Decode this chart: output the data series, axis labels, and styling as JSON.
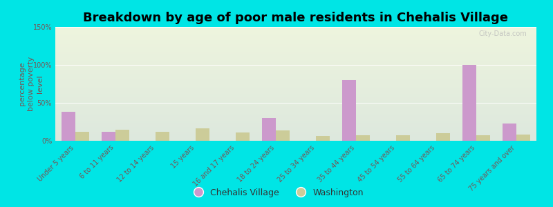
{
  "title": "Breakdown by age of poor male residents in Chehalis Village",
  "ylabel": "percentage\nbelow poverty\nlevel",
  "categories": [
    "Under 5 years",
    "6 to 11 years",
    "12 to 14 years",
    "15 years",
    "16 and 17 years",
    "18 to 24 years",
    "25 to 34 years",
    "35 to 44 years",
    "45 to 54 years",
    "55 to 64 years",
    "65 to 74 years",
    "75 years and over"
  ],
  "chehalis_values": [
    38,
    12,
    0,
    0,
    0,
    30,
    0,
    80,
    0,
    0,
    100,
    23
  ],
  "washington_values": [
    12,
    15,
    12,
    16,
    11,
    14,
    6,
    7,
    7,
    10,
    7,
    8
  ],
  "chehalis_color": "#cc99cc",
  "washington_color": "#cccc99",
  "ylim": [
    0,
    150
  ],
  "yticks": [
    0,
    50,
    100,
    150
  ],
  "ytick_labels": [
    "0%",
    "50%",
    "100%",
    "150%"
  ],
  "bg_color": "#00e5e5",
  "plot_bg_top": "#dde8dd",
  "plot_bg_bottom": "#eef5dd",
  "title_fontsize": 13,
  "axis_label_fontsize": 8,
  "tick_fontsize": 7,
  "legend_labels": [
    "Chehalis Village",
    "Washington"
  ],
  "watermark": "City-Data.com"
}
